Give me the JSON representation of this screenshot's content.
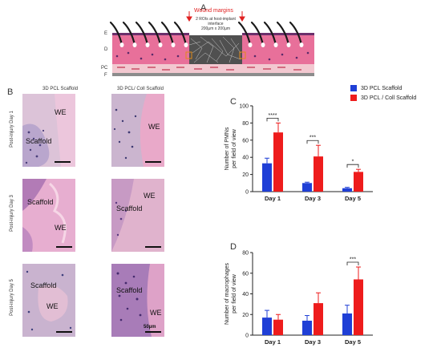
{
  "panels": {
    "A": "A",
    "B": "B",
    "C": "C",
    "D": "D"
  },
  "schematic": {
    "wound_margins": "Wound margins",
    "roi_line1": "2 ROIs at host-implant",
    "roi_line2": "interface",
    "roi_line3": "200µm x 200µm",
    "layers": [
      "E",
      "D",
      "PC",
      "F"
    ],
    "colors": {
      "epidermis": "#6b2f6b",
      "dermis": "#e8709a",
      "pc": "#f2c8d0",
      "wound": "#555555",
      "arrow": "#e02020"
    }
  },
  "micrographs": {
    "col_titles": [
      "3D PCL Scaffold",
      "3D PCL/ Coll Scaffold"
    ],
    "row_labels": [
      "Post-injury Day 1",
      "Post-injury Day 3",
      "Post-injury Day 5"
    ],
    "tiles": [
      {
        "labels": [
          "WE",
          "Scaffold"
        ],
        "tone": "#d8bcd4"
      },
      {
        "labels": [
          "WE"
        ],
        "tone": "#cdb6cf"
      },
      {
        "labels": [
          "Scaffold",
          "WE"
        ],
        "tone": "#d9a7c8"
      },
      {
        "labels": [
          "WE",
          "Scaffold"
        ],
        "tone": "#e1b4cd"
      },
      {
        "labels": [
          "Scaffold",
          "WE"
        ],
        "tone": "#c6b2cf"
      },
      {
        "labels": [
          "Scaffold",
          "WE"
        ],
        "tone": "#b68bbf"
      }
    ],
    "scale_label": "50µm"
  },
  "legend": {
    "items": [
      {
        "label": "3D PCL Scaffold",
        "color": "#1f3fd6"
      },
      {
        "label": "3D PCL / Coll Scaffold",
        "color": "#ee1c1c"
      }
    ]
  },
  "chart_data": [
    {
      "type": "bar",
      "ylabel": "Number of PMNs\nper field of view",
      "categories": [
        "Day 1",
        "Day 3",
        "Day 5"
      ],
      "ylim": [
        0,
        100
      ],
      "yticks": [
        0,
        20,
        40,
        60,
        80,
        100
      ],
      "series": [
        {
          "name": "3D PCL Scaffold",
          "color": "#1f3fd6",
          "values": [
            33,
            10,
            4
          ],
          "errors": [
            6,
            1,
            1
          ]
        },
        {
          "name": "3D PCL / Coll Scaffold",
          "color": "#ee1c1c",
          "values": [
            69,
            41,
            23
          ],
          "errors": [
            11,
            13,
            3
          ]
        }
      ],
      "significance": [
        "****",
        "***",
        "*"
      ]
    },
    {
      "type": "bar",
      "ylabel": "Number of macrophages\nper field of view",
      "categories": [
        "Day 1",
        "Day 3",
        "Day 5"
      ],
      "ylim": [
        0,
        80
      ],
      "yticks": [
        0,
        20,
        40,
        60,
        80
      ],
      "series": [
        {
          "name": "3D PCL Scaffold",
          "color": "#1f3fd6",
          "values": [
            17,
            14,
            21
          ],
          "errors": [
            7,
            5,
            8
          ]
        },
        {
          "name": "3D PCL / Coll Scaffold",
          "color": "#ee1c1c",
          "values": [
            15,
            31,
            54
          ],
          "errors": [
            5,
            10,
            12
          ]
        }
      ],
      "significance": [
        "",
        "",
        "***"
      ]
    }
  ]
}
